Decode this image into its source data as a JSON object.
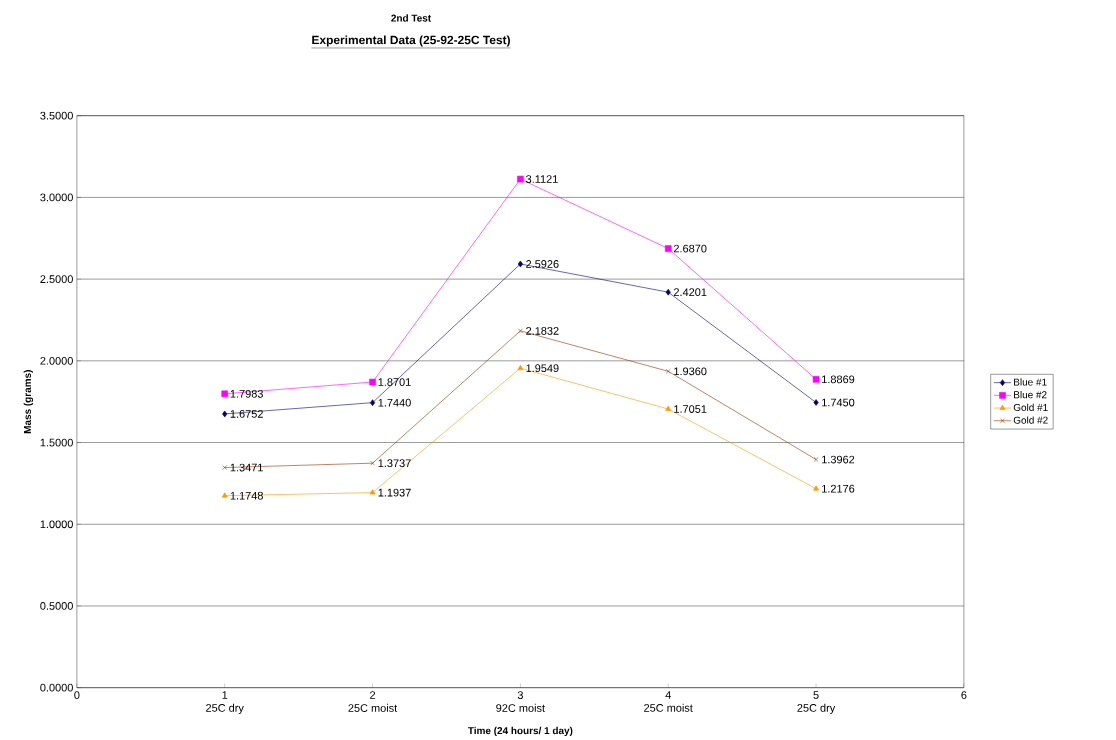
{
  "chart_data": {
    "type": "line",
    "title": "2nd Test",
    "subtitle": "Experimental Data (25-92-25C Test)",
    "xlabel": "Time (24 hours/ 1 day)",
    "ylabel": "Mass (grams)",
    "x": [
      1,
      2,
      3,
      4,
      5
    ],
    "xlim": [
      0,
      6
    ],
    "xticks": [
      0,
      {
        "value": 1,
        "label": "1\n25C dry"
      },
      {
        "value": 2,
        "label": "2\n25C moist"
      },
      {
        "value": 3,
        "label": "3\n92C moist"
      },
      {
        "value": 4,
        "label": "4\n25C moist"
      },
      {
        "value": 5,
        "label": "5\n25C dry"
      },
      6
    ],
    "ylim": [
      0,
      3.5
    ],
    "yticks": [
      {
        "value": 0,
        "label": "0.0000"
      },
      {
        "value": 0.5,
        "label": "0.5000"
      },
      {
        "value": 1,
        "label": "1.0000"
      },
      {
        "value": 1.5,
        "label": "1.5000"
      },
      {
        "value": 2,
        "label": "2.0000"
      },
      {
        "value": 2.5,
        "label": "2.5000"
      },
      {
        "value": 3,
        "label": "3.0000"
      },
      {
        "value": 3.5,
        "label": "3.5000"
      }
    ],
    "grid": "y",
    "legend": "right",
    "series": [
      {
        "name": "Blue #1",
        "color": "#000080",
        "marker": "diamond",
        "values": [
          1.6752,
          1.744,
          2.5926,
          2.4201,
          1.745
        ],
        "value_labels": [
          "1.6752",
          "1.7440",
          "2.5926",
          "2.4201",
          "1.7450"
        ]
      },
      {
        "name": "Blue #2",
        "color": "#ff00ff",
        "marker": "square",
        "values": [
          1.7983,
          1.8701,
          3.1121,
          2.687,
          1.8869
        ],
        "value_labels": [
          "1.7983",
          "1.8701",
          "3.1121",
          "2.6870",
          "1.8869"
        ]
      },
      {
        "name": "Gold #1",
        "color": "#ff9900",
        "marker": "triangle",
        "values": [
          1.1748,
          1.1937,
          1.9549,
          1.7051,
          1.2176
        ],
        "value_labels": [
          "1.1748",
          "1.1937",
          "1.9549",
          "1.7051",
          "1.2176"
        ]
      },
      {
        "name": "Gold #2",
        "color": "#993300",
        "marker": "cross",
        "values": [
          1.3471,
          1.3737,
          2.1832,
          1.936,
          1.3962
        ],
        "value_labels": [
          "1.3471",
          "1.3737",
          "2.1832",
          "1.9360",
          "1.3962"
        ]
      }
    ]
  }
}
